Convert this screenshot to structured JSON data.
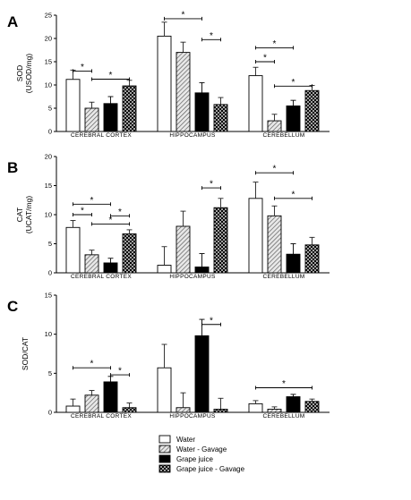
{
  "panels": [
    {
      "letter": "A",
      "chart_data": {
        "type": "bar",
        "ylabel": "SOD",
        "ylabel_unit": "(USOD/mg)",
        "ylim": [
          0,
          25
        ],
        "yticks": [
          0,
          5,
          10,
          15,
          20,
          25
        ],
        "categories": [
          "CEREBRAL CORTEX",
          "HIPPOCAMPUS",
          "CEREBELLUM"
        ],
        "series": [
          {
            "name": "Water",
            "values": [
              11.2,
              20.5,
              12.0
            ],
            "errors": [
              2.0,
              3.0,
              1.8
            ]
          },
          {
            "name": "Water - Gavage",
            "values": [
              5.0,
              17.0,
              2.3
            ],
            "errors": [
              1.3,
              2.2,
              1.4
            ]
          },
          {
            "name": "Grape juice",
            "values": [
              6.0,
              8.3,
              5.5
            ],
            "errors": [
              1.5,
              2.2,
              1.2
            ]
          },
          {
            "name": "Grape juice - Gavage",
            "values": [
              9.8,
              5.8,
              8.8
            ],
            "errors": [
              1.2,
              1.5,
              1.1
            ]
          }
        ],
        "significance": [
          {
            "category": 0,
            "from": 0,
            "to": 1,
            "level": 0.52,
            "label": "*"
          },
          {
            "category": 0,
            "from": 1,
            "to": 3,
            "level": 0.45,
            "label": "*"
          },
          {
            "category": 1,
            "from": 0,
            "to": 2,
            "level": 0.97,
            "label": "*"
          },
          {
            "category": 1,
            "from": 2,
            "to": 3,
            "level": 0.79,
            "label": "*"
          },
          {
            "category": 2,
            "from": 0,
            "to": 2,
            "level": 0.72,
            "label": "*"
          },
          {
            "category": 2,
            "from": 0,
            "to": 1,
            "level": 0.6,
            "label": "*"
          },
          {
            "category": 2,
            "from": 1,
            "to": 3,
            "level": 0.39,
            "label": "*"
          }
        ]
      }
    },
    {
      "letter": "B",
      "chart_data": {
        "type": "bar",
        "ylabel": "CAT",
        "ylabel_unit": "(UCAT/mg)",
        "ylim": [
          0,
          20
        ],
        "yticks": [
          0,
          5,
          10,
          15,
          20
        ],
        "categories": [
          "CEREBRAL CORTEX",
          "HIPPOCAMPUS",
          "CEREBELLUM"
        ],
        "series": [
          {
            "name": "Water",
            "values": [
              7.8,
              1.3,
              12.8
            ],
            "errors": [
              1.2,
              3.2,
              2.8
            ]
          },
          {
            "name": "Water - Gavage",
            "values": [
              3.1,
              8.0,
              9.8
            ],
            "errors": [
              0.8,
              2.6,
              1.7
            ]
          },
          {
            "name": "Grape juice",
            "values": [
              1.7,
              1.0,
              3.2
            ],
            "errors": [
              0.8,
              2.3,
              1.8
            ]
          },
          {
            "name": "Grape juice - Gavage",
            "values": [
              6.7,
              11.2,
              4.8
            ],
            "errors": [
              0.7,
              1.6,
              1.3
            ]
          }
        ],
        "significance": [
          {
            "category": 0,
            "from": 0,
            "to": 2,
            "level": 0.59,
            "label": "*"
          },
          {
            "category": 0,
            "from": 0,
            "to": 1,
            "level": 0.5,
            "label": "*"
          },
          {
            "category": 0,
            "from": 2,
            "to": 3,
            "level": 0.49,
            "label": "*"
          },
          {
            "category": 0,
            "from": 1,
            "to": 3,
            "level": 0.42,
            "label": "*"
          },
          {
            "category": 1,
            "from": 2,
            "to": 3,
            "level": 0.73,
            "label": "*"
          },
          {
            "category": 2,
            "from": 0,
            "to": 2,
            "level": 0.86,
            "label": "*"
          },
          {
            "category": 2,
            "from": 1,
            "to": 3,
            "level": 0.64,
            "label": "*"
          }
        ]
      }
    },
    {
      "letter": "C",
      "chart_data": {
        "type": "bar",
        "ylabel": "SOD/CAT",
        "ylabel_unit": "",
        "ylim": [
          0,
          15
        ],
        "yticks": [
          0,
          5,
          10,
          15
        ],
        "categories": [
          "CEREBRAL CORTEX",
          "HIPPOCAMPUS",
          "CEREBELLUM"
        ],
        "series": [
          {
            "name": "Water",
            "values": [
              0.8,
              5.7,
              1.1
            ],
            "errors": [
              0.9,
              3.0,
              0.4
            ]
          },
          {
            "name": "Water - Gavage",
            "values": [
              2.2,
              0.6,
              0.4
            ],
            "errors": [
              0.6,
              1.9,
              0.3
            ]
          },
          {
            "name": "Grape juice",
            "values": [
              3.9,
              9.8,
              2.0
            ],
            "errors": [
              0.7,
              2.1,
              0.3
            ]
          },
          {
            "name": "Grape juice - Gavage",
            "values": [
              0.6,
              0.4,
              1.4
            ],
            "errors": [
              0.6,
              1.4,
              0.3
            ]
          }
        ],
        "significance": [
          {
            "category": 0,
            "from": 0,
            "to": 2,
            "level": 0.38,
            "label": "*"
          },
          {
            "category": 0,
            "from": 2,
            "to": 3,
            "level": 0.32,
            "label": "*"
          },
          {
            "category": 1,
            "from": 2,
            "to": 3,
            "level": 0.75,
            "label": "*"
          },
          {
            "category": 2,
            "from": 0,
            "to": 3,
            "level": 0.21,
            "label": "*"
          }
        ]
      }
    }
  ],
  "legend": {
    "items": [
      {
        "label": "Water",
        "pattern": "white"
      },
      {
        "label": "Water - Gavage",
        "pattern": "hatch"
      },
      {
        "label": "Grape juice",
        "pattern": "black"
      },
      {
        "label": "Grape juice - Gavage",
        "pattern": "cross"
      }
    ]
  }
}
